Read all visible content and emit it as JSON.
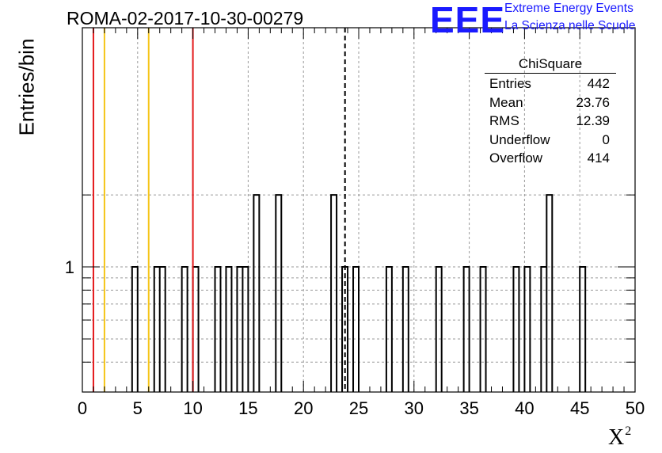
{
  "header": {
    "title": "ROMA-02-2017-10-30-00279",
    "logo_text": "EEE",
    "logo_line1": "Extreme Energy Events",
    "logo_line2": "La Scienza nelle Scuole"
  },
  "colors": {
    "histogram": "#000000",
    "red_marker": "#e41a1c",
    "yellow_marker": "#f5c518",
    "logo_blue": "#1a1aff",
    "grid": "#9a9a9a"
  },
  "stats_box": {
    "title": "ChiSquare",
    "rows": [
      {
        "label": "Entries",
        "value": "442"
      },
      {
        "label": "Mean",
        "value": "23.76"
      },
      {
        "label": "RMS",
        "value": "12.39"
      },
      {
        "label": "Underflow",
        "value": "0"
      },
      {
        "label": "Overflow",
        "value": "414"
      }
    ]
  },
  "chart_data": {
    "type": "bar",
    "histogram": true,
    "x_range": [
      0,
      50
    ],
    "bin_width": 0.5,
    "y_scale": "log",
    "ylim": [
      0.3,
      10
    ],
    "xlabel": "X",
    "xlabel_superscript": "2",
    "ylabel": "Entries/bin",
    "x_ticks": [
      "0",
      "5",
      "10",
      "15",
      "20",
      "25",
      "30",
      "35",
      "40",
      "45",
      "50"
    ],
    "y_tick_labels": [
      {
        "value": 1,
        "label": "1"
      }
    ],
    "grid": true,
    "bins": [
      {
        "x": 4.5,
        "count": 1
      },
      {
        "x": 6.5,
        "count": 1
      },
      {
        "x": 7.0,
        "count": 1
      },
      {
        "x": 9.0,
        "count": 1
      },
      {
        "x": 10.0,
        "count": 1
      },
      {
        "x": 12.0,
        "count": 1
      },
      {
        "x": 13.0,
        "count": 1
      },
      {
        "x": 14.0,
        "count": 1
      },
      {
        "x": 14.5,
        "count": 1
      },
      {
        "x": 15.5,
        "count": 2
      },
      {
        "x": 17.5,
        "count": 2
      },
      {
        "x": 22.5,
        "count": 2
      },
      {
        "x": 23.5,
        "count": 1
      },
      {
        "x": 24.5,
        "count": 1
      },
      {
        "x": 27.5,
        "count": 1
      },
      {
        "x": 29.0,
        "count": 1
      },
      {
        "x": 32.0,
        "count": 1
      },
      {
        "x": 34.5,
        "count": 1
      },
      {
        "x": 36.0,
        "count": 1
      },
      {
        "x": 39.0,
        "count": 1
      },
      {
        "x": 40.0,
        "count": 1
      },
      {
        "x": 41.5,
        "count": 1
      },
      {
        "x": 42.0,
        "count": 2
      },
      {
        "x": 45.0,
        "count": 1
      }
    ],
    "vertical_markers": [
      {
        "x": 1.0,
        "color": "red",
        "style": "solid"
      },
      {
        "x": 2.0,
        "color": "yellow",
        "style": "solid"
      },
      {
        "x": 6.0,
        "color": "yellow",
        "style": "solid"
      },
      {
        "x": 10.0,
        "color": "red",
        "style": "solid"
      },
      {
        "x": 23.76,
        "color": "black",
        "style": "dashed",
        "meaning": "mean"
      }
    ]
  }
}
